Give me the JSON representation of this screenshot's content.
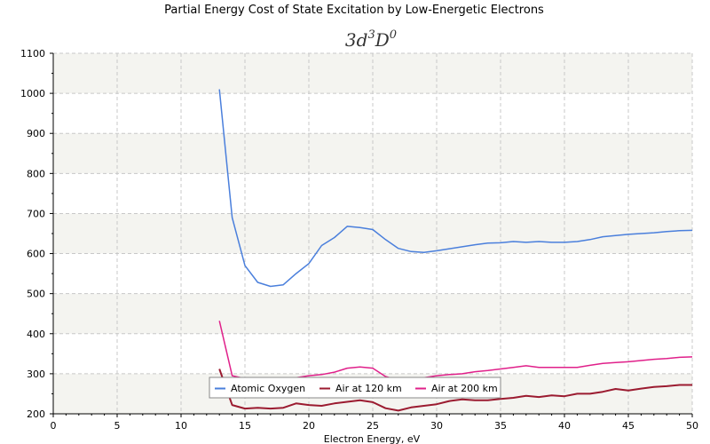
{
  "chart_data": {
    "type": "line",
    "title": "Partial Energy Cost of State Excitation by Low-Energetic Electrons",
    "subtitle_base": "3d",
    "subtitle_sup1": "3",
    "subtitle_mid": "D",
    "subtitle_sup2": "0",
    "xlabel": "Electron Energy, eV",
    "ylabel": "",
    "xlim": [
      0,
      50
    ],
    "ylim": [
      200,
      1100
    ],
    "xticks": [
      "0",
      "5",
      "10",
      "15",
      "20",
      "25",
      "30",
      "35",
      "40",
      "45",
      "50"
    ],
    "yticks": [
      "200",
      "300",
      "400",
      "500",
      "600",
      "700",
      "800",
      "900",
      "1000",
      "1100"
    ],
    "grid": true,
    "legend_position": "bottom-center",
    "series": [
      {
        "name": "Atomic Oxygen",
        "color": "#4a7fdc",
        "x": [
          13,
          14,
          15,
          16,
          17,
          18,
          19,
          20,
          21,
          22,
          23,
          24,
          25,
          26,
          27,
          28,
          29,
          30,
          31,
          32,
          33,
          34,
          35,
          36,
          37,
          38,
          39,
          40,
          41,
          42,
          43,
          44,
          45,
          46,
          47,
          48,
          49,
          50
        ],
        "y": [
          1010,
          690,
          570,
          528,
          518,
          522,
          550,
          575,
          620,
          640,
          668,
          665,
          660,
          635,
          613,
          605,
          603,
          607,
          612,
          617,
          622,
          626,
          627,
          630,
          628,
          630,
          628,
          628,
          630,
          635,
          642,
          645,
          648,
          650,
          652,
          655,
          657,
          658
        ]
      },
      {
        "name": "Air at 120 km",
        "color": "#9b1b30",
        "x": [
          13,
          14,
          15,
          16,
          17,
          18,
          19,
          20,
          21,
          22,
          23,
          24,
          25,
          26,
          27,
          28,
          29,
          30,
          31,
          32,
          33,
          34,
          35,
          36,
          37,
          38,
          39,
          40,
          41,
          42,
          43,
          44,
          45,
          46,
          47,
          48,
          49,
          50
        ],
        "y": [
          312,
          222,
          213,
          215,
          213,
          215,
          226,
          222,
          220,
          226,
          230,
          234,
          229,
          214,
          208,
          216,
          220,
          224,
          232,
          236,
          234,
          234,
          237,
          240,
          245,
          242,
          246,
          244,
          250,
          250,
          255,
          262,
          258,
          263,
          267,
          269,
          272,
          272
        ]
      },
      {
        "name": "Air at 200 km",
        "color": "#e0208a",
        "x": [
          13,
          14,
          15,
          16,
          17,
          18,
          19,
          20,
          21,
          22,
          23,
          24,
          25,
          26,
          27,
          28,
          29,
          30,
          31,
          32,
          33,
          34,
          35,
          36,
          37,
          38,
          39,
          40,
          41,
          42,
          43,
          44,
          45,
          46,
          47,
          48,
          49,
          50
        ],
        "y": [
          432,
          295,
          288,
          286,
          285,
          286,
          290,
          295,
          298,
          304,
          314,
          317,
          314,
          293,
          284,
          286,
          290,
          295,
          298,
          300,
          305,
          308,
          312,
          316,
          320,
          316,
          316,
          316,
          316,
          321,
          326,
          328,
          330,
          333,
          336,
          338,
          341,
          342
        ]
      }
    ]
  }
}
